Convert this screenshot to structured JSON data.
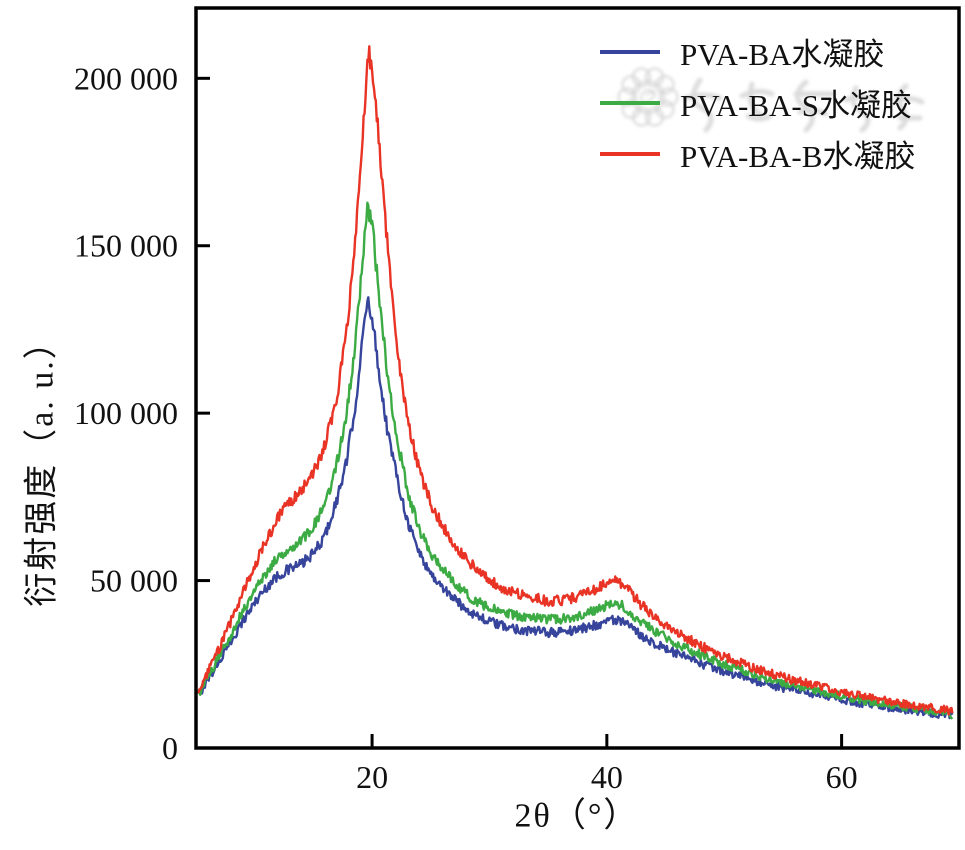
{
  "figure": {
    "background": "#ffffff",
    "text_color": "#111111",
    "frame_color": "#000000"
  },
  "axes": {
    "xlabel": "2θ（°）",
    "ylabel": "衍射强度（a. u.）",
    "x_ticks": [
      {
        "value": 20,
        "label": "20"
      },
      {
        "value": 40,
        "label": "40"
      },
      {
        "value": 60,
        "label": "60"
      }
    ],
    "y_ticks": [
      {
        "value": 0,
        "label": "0"
      },
      {
        "value": 50000,
        "label": "50 000"
      },
      {
        "value": 100000,
        "label": "100 000"
      },
      {
        "value": 150000,
        "label": "150 000"
      },
      {
        "value": 200000,
        "label": "200 000"
      }
    ]
  },
  "legend": {
    "position": "upper right",
    "items": [
      {
        "label": "PVA-BA水凝胶",
        "color": "#36449b"
      },
      {
        "label": "PVA-BA-S水凝胶",
        "color": "#3cab43"
      },
      {
        "label": "PVA-BA-B水凝胶",
        "color": "#e93325"
      }
    ]
  },
  "watermark": {
    "kind": "journal-seal-and-script",
    "color": "#b5b5b5"
  },
  "chart_data": {
    "type": "line",
    "title": "",
    "xlabel": "2θ（°）",
    "ylabel": "衍射强度（a. u.）",
    "xlim": [
      5,
      70
    ],
    "ylim": [
      0,
      221000
    ],
    "grid": false,
    "legend_position": "upper right",
    "x_tick_values": [
      20,
      40,
      60
    ],
    "y_tick_values": [
      0,
      50000,
      100000,
      150000,
      200000
    ],
    "y_tick_labels": [
      "0",
      "50 000",
      "100 000",
      "150 000",
      "200 000"
    ],
    "noise": {
      "base": 1100,
      "proportional": 0.009,
      "step": 0.08
    },
    "series": [
      {
        "name": "PVA-BA水凝胶",
        "color": "#36449b",
        "points": [
          [
            5.2,
            15500
          ],
          [
            6,
            20500
          ],
          [
            7,
            26000
          ],
          [
            8,
            32000
          ],
          [
            9,
            38000
          ],
          [
            10,
            43500
          ],
          [
            11,
            48000
          ],
          [
            12,
            51500
          ],
          [
            13,
            53500
          ],
          [
            14,
            55000
          ],
          [
            15,
            58000
          ],
          [
            16,
            63500
          ],
          [
            17,
            74000
          ],
          [
            17.8,
            85000
          ],
          [
            18.6,
            103000
          ],
          [
            19.2,
            122000
          ],
          [
            19.6,
            134000
          ],
          [
            20,
            129000
          ],
          [
            20.6,
            112000
          ],
          [
            21.3,
            95000
          ],
          [
            22,
            83000
          ],
          [
            23,
            68000
          ],
          [
            24,
            58500
          ],
          [
            25,
            52000
          ],
          [
            26,
            48000
          ],
          [
            27,
            44500
          ],
          [
            28,
            41500
          ],
          [
            29.5,
            38500
          ],
          [
            31,
            36500
          ],
          [
            33,
            35200
          ],
          [
            35,
            34500
          ],
          [
            36.5,
            34800
          ],
          [
            38,
            35800
          ],
          [
            39.3,
            37000
          ],
          [
            40.4,
            38500
          ],
          [
            41.2,
            37800
          ],
          [
            42,
            36000
          ],
          [
            43,
            33500
          ],
          [
            44.5,
            30500
          ],
          [
            46,
            28000
          ],
          [
            48,
            25200
          ],
          [
            50,
            22800
          ],
          [
            52,
            20800
          ],
          [
            54,
            18800
          ],
          [
            56,
            17200
          ],
          [
            58,
            15800
          ],
          [
            60,
            14400
          ],
          [
            62,
            13200
          ],
          [
            64,
            12200
          ],
          [
            66,
            11200
          ],
          [
            68,
            10300
          ],
          [
            69.5,
            9600
          ]
        ]
      },
      {
        "name": "PVA-BA-S水凝胶",
        "color": "#3cab43",
        "points": [
          [
            5.2,
            15800
          ],
          [
            6,
            21000
          ],
          [
            7,
            27500
          ],
          [
            8,
            34000
          ],
          [
            9,
            41000
          ],
          [
            10,
            47000
          ],
          [
            11,
            52500
          ],
          [
            12,
            57000
          ],
          [
            13,
            60000
          ],
          [
            14,
            62000
          ],
          [
            15,
            66000
          ],
          [
            16,
            72500
          ],
          [
            17,
            85000
          ],
          [
            17.8,
            99000
          ],
          [
            18.6,
            122000
          ],
          [
            19.2,
            145000
          ],
          [
            19.6,
            163000
          ],
          [
            20.1,
            153000
          ],
          [
            20.7,
            131000
          ],
          [
            21.4,
            109000
          ],
          [
            22,
            95000
          ],
          [
            23,
            77000
          ],
          [
            24,
            65500
          ],
          [
            25,
            58000
          ],
          [
            26,
            53500
          ],
          [
            27,
            49500
          ],
          [
            28,
            46000
          ],
          [
            29.5,
            42500
          ],
          [
            31,
            40500
          ],
          [
            33,
            39000
          ],
          [
            35,
            38300
          ],
          [
            36.5,
            38600
          ],
          [
            38,
            39800
          ],
          [
            39.3,
            41500
          ],
          [
            40.5,
            43500
          ],
          [
            41.3,
            42500
          ],
          [
            42,
            40500
          ],
          [
            43,
            37500
          ],
          [
            44.5,
            34000
          ],
          [
            46,
            31000
          ],
          [
            48,
            27800
          ],
          [
            50,
            25000
          ],
          [
            52,
            22600
          ],
          [
            54,
            20400
          ],
          [
            56,
            18600
          ],
          [
            58,
            17000
          ],
          [
            60,
            15500
          ],
          [
            62,
            14200
          ],
          [
            64,
            13000
          ],
          [
            66,
            12000
          ],
          [
            68,
            10800
          ],
          [
            69.5,
            10000
          ]
        ]
      },
      {
        "name": "PVA-BA-B水凝胶",
        "color": "#e93325",
        "points": [
          [
            5.2,
            16500
          ],
          [
            6,
            22500
          ],
          [
            7,
            30000
          ],
          [
            8,
            38000
          ],
          [
            9,
            46500
          ],
          [
            10,
            54500
          ],
          [
            11,
            62000
          ],
          [
            12,
            69000
          ],
          [
            13,
            73500
          ],
          [
            14,
            77000
          ],
          [
            15,
            82000
          ],
          [
            16,
            90500
          ],
          [
            17,
            105000
          ],
          [
            17.8,
            123000
          ],
          [
            18.6,
            152000
          ],
          [
            19.2,
            183000
          ],
          [
            19.7,
            208000
          ],
          [
            20.2,
            198000
          ],
          [
            20.8,
            172000
          ],
          [
            21.5,
            142000
          ],
          [
            22.2,
            118000
          ],
          [
            23,
            98000
          ],
          [
            24,
            83000
          ],
          [
            25,
            73000
          ],
          [
            26,
            66500
          ],
          [
            27,
            61000
          ],
          [
            28,
            56500
          ],
          [
            29.5,
            51500
          ],
          [
            31,
            48000
          ],
          [
            33,
            45500
          ],
          [
            35,
            43800
          ],
          [
            36.5,
            44200
          ],
          [
            38,
            45800
          ],
          [
            39.3,
            48000
          ],
          [
            40.5,
            50500
          ],
          [
            41.3,
            49000
          ],
          [
            42,
            46500
          ],
          [
            43,
            42500
          ],
          [
            44.5,
            38000
          ],
          [
            46,
            34500
          ],
          [
            48,
            30500
          ],
          [
            50,
            27300
          ],
          [
            52,
            24600
          ],
          [
            54,
            22200
          ],
          [
            56,
            20200
          ],
          [
            58,
            18400
          ],
          [
            60,
            16800
          ],
          [
            62,
            15300
          ],
          [
            64,
            14000
          ],
          [
            66,
            12900
          ],
          [
            68,
            11800
          ],
          [
            69.5,
            11000
          ]
        ]
      }
    ]
  }
}
